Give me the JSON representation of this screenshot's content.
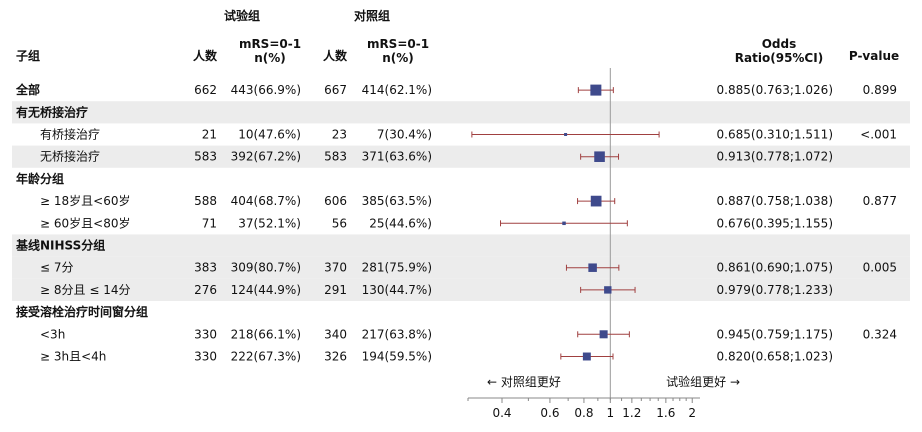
{
  "headers": {
    "group_label": "子组",
    "trial_group": "试验组",
    "control_group": "对照组",
    "n_label": "人数",
    "mrs_label_line1": "mRS=0-1",
    "mrs_label_line2": "n(%)",
    "odds_line1": "Odds",
    "odds_line2": "Ratio(95%CI)",
    "pvalue_label": "P-value"
  },
  "rows": [
    {
      "label": "全部",
      "level": 0,
      "shade": false,
      "n_trial": "662",
      "mrs_trial": "443(66.9%)",
      "n_ctrl": "667",
      "mrs_ctrl": "414(62.1%)",
      "or_text": "0.885(0.763;1.026)",
      "p": "0.899"
    },
    {
      "label": "有无桥接治疗",
      "level": 0,
      "shade": true,
      "header": true
    },
    {
      "label": "有桥接治疗",
      "level": 1,
      "shade": false,
      "n_trial": "21",
      "mrs_trial": "10(47.6%)",
      "n_ctrl": "23",
      "mrs_ctrl": "7(30.4%)",
      "or_text": "0.685(0.310;1.511)",
      "p": "<.001"
    },
    {
      "label": "无桥接治疗",
      "level": 1,
      "shade": true,
      "n_trial": "583",
      "mrs_trial": "392(67.2%)",
      "n_ctrl": "583",
      "mrs_ctrl": "371(63.6%)",
      "or_text": "0.913(0.778;1.072)",
      "p": ""
    },
    {
      "label": "年龄分组",
      "level": 0,
      "shade": false,
      "header": true
    },
    {
      "label": "≥ 18岁且<60岁",
      "level": 1,
      "shade": false,
      "n_trial": "588",
      "mrs_trial": "404(68.7%)",
      "n_ctrl": "606",
      "mrs_ctrl": "385(63.5%)",
      "or_text": "0.887(0.758;1.038)",
      "p": "0.877"
    },
    {
      "label": "≥ 60岁且<80岁",
      "level": 1,
      "shade": false,
      "n_trial": "71",
      "mrs_trial": "37(52.1%)",
      "n_ctrl": "56",
      "mrs_ctrl": "25(44.6%)",
      "or_text": "0.676(0.395;1.155)",
      "p": ""
    },
    {
      "label": "基线NIHSS分组",
      "level": 0,
      "shade": true,
      "header": true
    },
    {
      "label": "≤ 7分",
      "level": 1,
      "shade": true,
      "n_trial": "383",
      "mrs_trial": "309(80.7%)",
      "n_ctrl": "370",
      "mrs_ctrl": "281(75.9%)",
      "or_text": "0.861(0.690;1.075)",
      "p": "0.005"
    },
    {
      "label": "≥ 8分且 ≤ 14分",
      "level": 1,
      "shade": true,
      "n_trial": "276",
      "mrs_trial": "124(44.9%)",
      "n_ctrl": "291",
      "mrs_ctrl": "130(44.7%)",
      "or_text": "0.979(0.778;1.233)",
      "p": ""
    },
    {
      "label": "接受溶栓治疗时间窗分组",
      "level": 0,
      "shade": false,
      "header": true
    },
    {
      "label": "<3h",
      "level": 1,
      "shade": false,
      "n_trial": "330",
      "mrs_trial": "218(66.1%)",
      "n_ctrl": "340",
      "mrs_ctrl": "217(63.8%)",
      "or_text": "0.945(0.759;1.175)",
      "p": "0.324"
    },
    {
      "label": "≥ 3h且<4h",
      "level": 1,
      "shade": false,
      "n_trial": "330",
      "mrs_trial": "222(67.3%)",
      "n_ctrl": "326",
      "mrs_ctrl": "194(59.5%)",
      "or_text": "0.820(0.658;1.023)",
      "p": ""
    }
  ],
  "favors": {
    "left": "← 对照组更好",
    "right": "试验组更好 →"
  },
  "chart_data": {
    "type": "forest",
    "xscale": "log",
    "xlim": [
      0.3,
      2.1
    ],
    "reference_line": 1,
    "xticks": [
      0.4,
      0.6,
      0.8,
      1,
      1.2,
      1.6,
      2
    ],
    "xtick_labels": [
      "0.4",
      "0.6",
      "0.8",
      "1",
      "1.2",
      "1.6",
      "2"
    ],
    "series": [
      {
        "label": "全部",
        "or": 0.885,
        "lo": 0.763,
        "hi": 1.026
      },
      {
        "label": "有桥接治疗",
        "or": 0.685,
        "lo": 0.31,
        "hi": 1.511
      },
      {
        "label": "无桥接治疗",
        "or": 0.913,
        "lo": 0.778,
        "hi": 1.072
      },
      {
        "label": "≥ 18岁且<60岁",
        "or": 0.887,
        "lo": 0.758,
        "hi": 1.038
      },
      {
        "label": "≥ 60岁且<80岁",
        "or": 0.676,
        "lo": 0.395,
        "hi": 1.155
      },
      {
        "label": "≤ 7分",
        "or": 0.861,
        "lo": 0.69,
        "hi": 1.075
      },
      {
        "label": "≥ 8分且 ≤ 14分",
        "or": 0.979,
        "lo": 0.778,
        "hi": 1.233
      },
      {
        "label": "<3h",
        "or": 0.945,
        "lo": 0.759,
        "hi": 1.175
      },
      {
        "label": "≥ 3h且<4h",
        "or": 0.82,
        "lo": 0.658,
        "hi": 1.023
      }
    ],
    "colors": {
      "box": "#3f4a8c",
      "whisker": "#a04040",
      "refline": "#999999",
      "shade": "#ececec"
    }
  }
}
